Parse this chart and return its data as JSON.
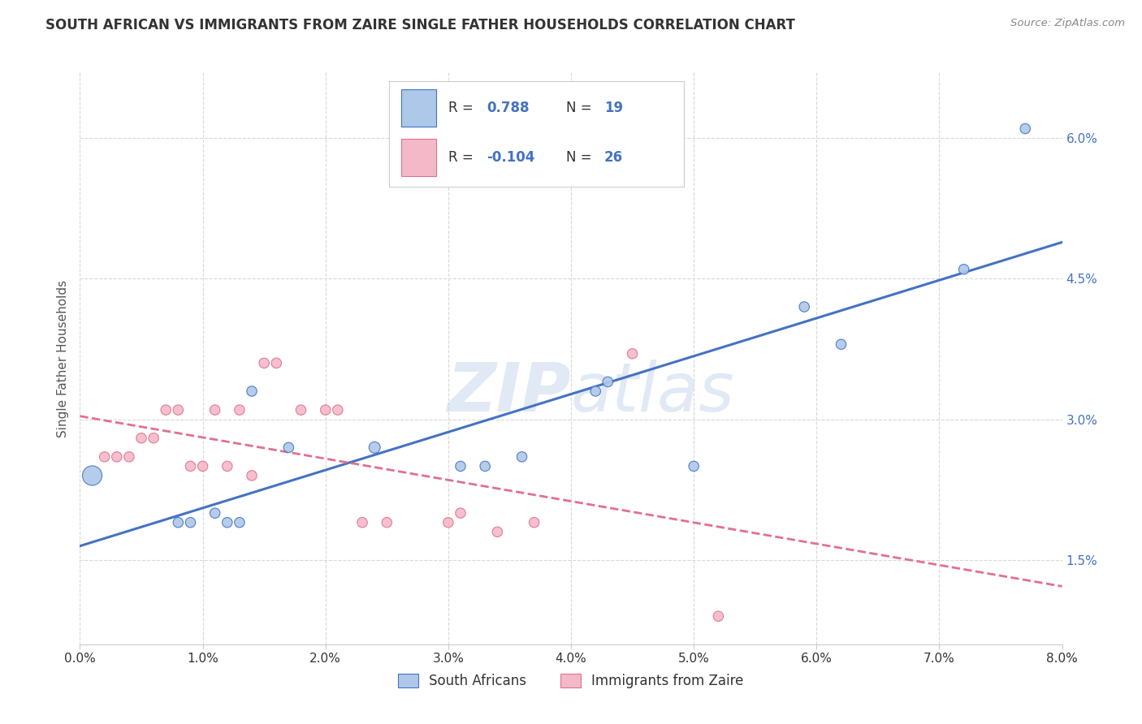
{
  "title": "SOUTH AFRICAN VS IMMIGRANTS FROM ZAIRE SINGLE FATHER HOUSEHOLDS CORRELATION CHART",
  "source": "Source: ZipAtlas.com",
  "ylabel_label": "Single Father Households",
  "xlim": [
    0.0,
    0.08
  ],
  "ylim": [
    0.006,
    0.067
  ],
  "blue_R": "0.788",
  "blue_N": "19",
  "pink_R": "-0.104",
  "pink_N": "26",
  "blue_color": "#adc8e8",
  "pink_color": "#f5b8c8",
  "line_blue": "#4472c4",
  "line_pink": "#e07090",
  "watermark_color": "#c8d8ec",
  "blue_points": [
    [
      0.001,
      0.024
    ],
    [
      0.008,
      0.019
    ],
    [
      0.009,
      0.019
    ],
    [
      0.011,
      0.02
    ],
    [
      0.012,
      0.019
    ],
    [
      0.013,
      0.019
    ],
    [
      0.014,
      0.033
    ],
    [
      0.017,
      0.027
    ],
    [
      0.024,
      0.027
    ],
    [
      0.031,
      0.025
    ],
    [
      0.033,
      0.025
    ],
    [
      0.036,
      0.026
    ],
    [
      0.042,
      0.033
    ],
    [
      0.043,
      0.034
    ],
    [
      0.05,
      0.025
    ],
    [
      0.059,
      0.042
    ],
    [
      0.062,
      0.038
    ],
    [
      0.072,
      0.046
    ],
    [
      0.077,
      0.061
    ]
  ],
  "pink_points": [
    [
      0.002,
      0.026
    ],
    [
      0.003,
      0.026
    ],
    [
      0.004,
      0.026
    ],
    [
      0.005,
      0.028
    ],
    [
      0.006,
      0.028
    ],
    [
      0.007,
      0.031
    ],
    [
      0.008,
      0.031
    ],
    [
      0.009,
      0.025
    ],
    [
      0.01,
      0.025
    ],
    [
      0.011,
      0.031
    ],
    [
      0.012,
      0.025
    ],
    [
      0.013,
      0.031
    ],
    [
      0.014,
      0.024
    ],
    [
      0.015,
      0.036
    ],
    [
      0.016,
      0.036
    ],
    [
      0.018,
      0.031
    ],
    [
      0.02,
      0.031
    ],
    [
      0.021,
      0.031
    ],
    [
      0.023,
      0.019
    ],
    [
      0.025,
      0.019
    ],
    [
      0.03,
      0.019
    ],
    [
      0.031,
      0.02
    ],
    [
      0.034,
      0.018
    ],
    [
      0.037,
      0.019
    ],
    [
      0.045,
      0.037
    ],
    [
      0.052,
      0.009
    ]
  ],
  "blue_sizes": [
    300,
    80,
    80,
    80,
    80,
    80,
    80,
    80,
    100,
    80,
    80,
    80,
    80,
    80,
    80,
    80,
    80,
    80,
    80
  ],
  "pink_sizes": [
    80,
    80,
    80,
    80,
    80,
    80,
    80,
    80,
    80,
    80,
    80,
    80,
    80,
    80,
    80,
    80,
    80,
    80,
    80,
    80,
    80,
    80,
    80,
    80,
    80,
    80
  ],
  "legend_entries": [
    "South Africans",
    "Immigrants from Zaire"
  ],
  "background_color": "#ffffff",
  "grid_color": "#d8d8d8"
}
